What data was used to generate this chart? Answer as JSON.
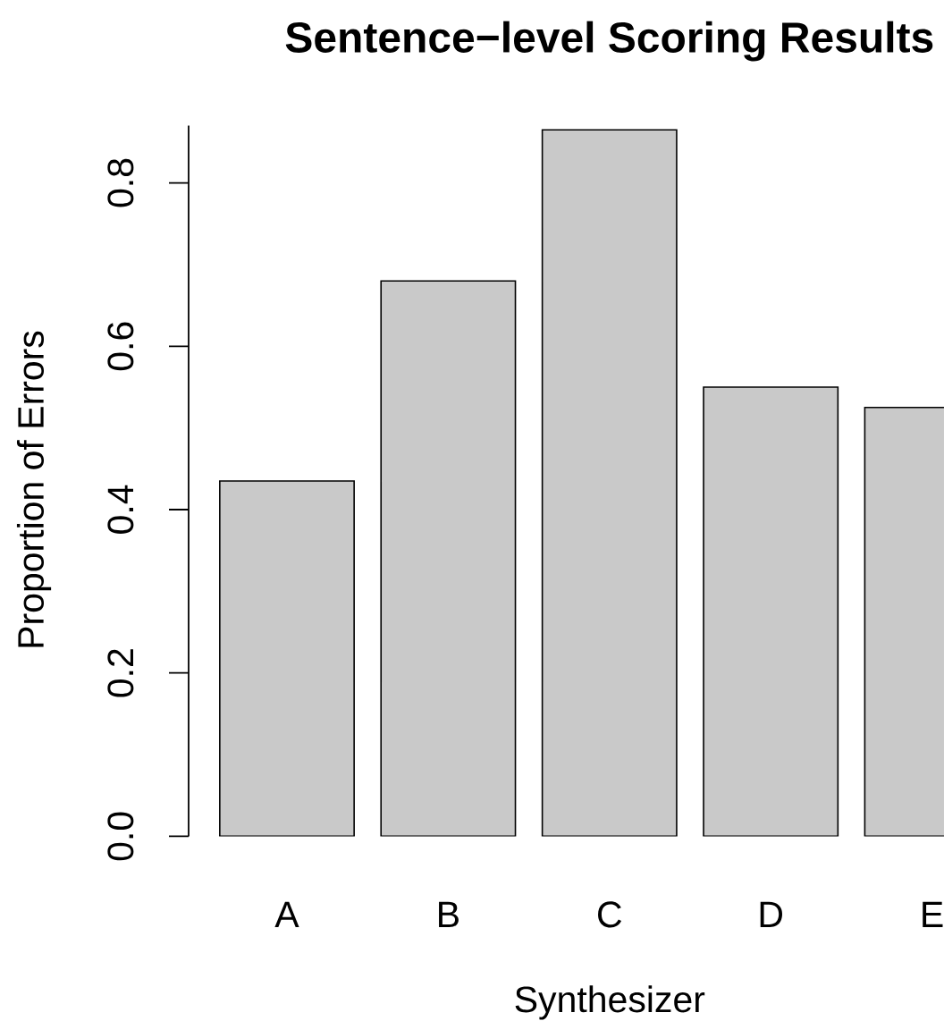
{
  "chart_data": {
    "type": "bar",
    "title": "Sentence−level Scoring Results",
    "xlabel": "Synthesizer",
    "ylabel": "Proportion of Errors",
    "categories": [
      "A",
      "B",
      "C",
      "D",
      "E"
    ],
    "values": [
      0.435,
      0.68,
      0.865,
      0.55,
      0.525
    ],
    "color": "#c9c9c9",
    "ylim": [
      0,
      0.87
    ],
    "yticks": [
      {
        "value": 0,
        "label": "0.0"
      },
      {
        "value": 0.2,
        "label": "0.2"
      },
      {
        "value": 0.4,
        "label": "0.4"
      },
      {
        "value": 0.6,
        "label": "0.6"
      },
      {
        "value": 0.8,
        "label": "0.8"
      }
    ]
  }
}
